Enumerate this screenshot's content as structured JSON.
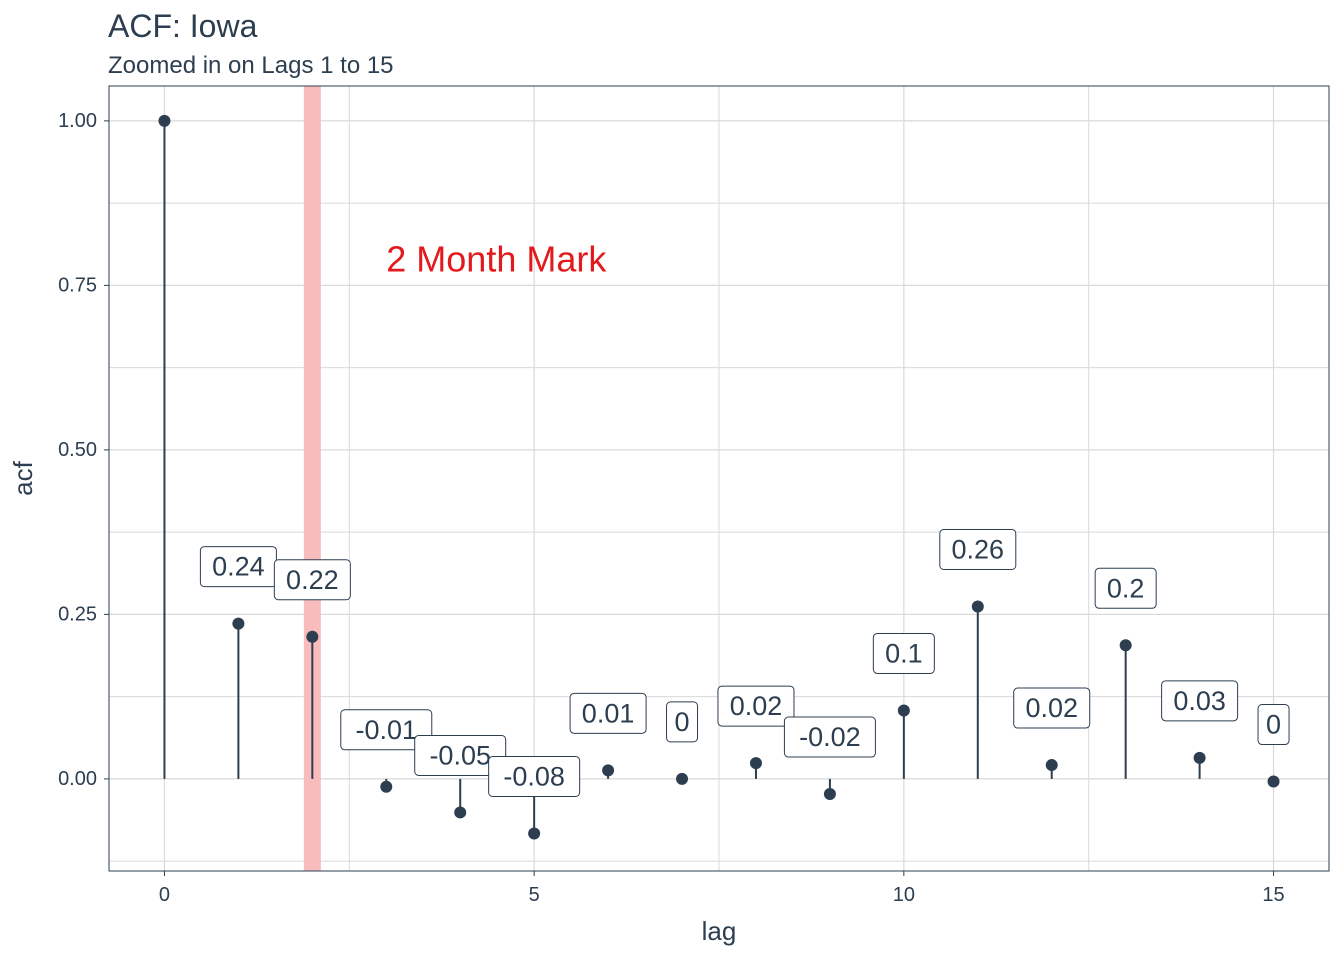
{
  "chart_data": {
    "type": "lollipop",
    "title": "ACF: Iowa",
    "subtitle": "Zoomed in on Lags 1 to 15",
    "xlabel": "lag",
    "ylabel": "acf",
    "xlim": [
      -0.75,
      15.75
    ],
    "ylim": [
      -0.14,
      1.053
    ],
    "x_ticks": [
      0,
      5,
      10,
      15
    ],
    "y_ticks": [
      0.0,
      0.25,
      0.5,
      0.75,
      1.0
    ],
    "y_tick_labels": [
      "0.00",
      "0.25",
      "0.50",
      "0.75",
      "1.00"
    ],
    "grid": true,
    "series": [
      {
        "x": [
          0,
          1,
          2,
          3,
          4,
          5,
          6,
          7,
          8,
          9,
          10,
          11,
          12,
          13,
          14,
          15
        ],
        "values": [
          1.0,
          0.236,
          0.216,
          -0.012,
          -0.051,
          -0.083,
          0.013,
          0.0,
          0.024,
          -0.023,
          0.104,
          0.262,
          0.021,
          0.203,
          0.032,
          -0.004
        ],
        "labels": [
          "",
          "0.24",
          "0.22",
          "-0.01",
          "-0.05",
          "-0.08",
          "0.01",
          "0",
          "0.02",
          "-0.02",
          "0.1",
          "0.26",
          "0.02",
          "0.2",
          "0.03",
          "0"
        ]
      }
    ],
    "highlight": {
      "x": 2,
      "color": "#f8bcbc"
    },
    "annotation": {
      "text": "2 Month Mark",
      "x": 3,
      "y": 0.79,
      "color": "#e31a1c"
    },
    "colors": {
      "series": "#2c3e50",
      "grid": "#d9d9d9",
      "panel_border": "#2c3e50"
    }
  }
}
